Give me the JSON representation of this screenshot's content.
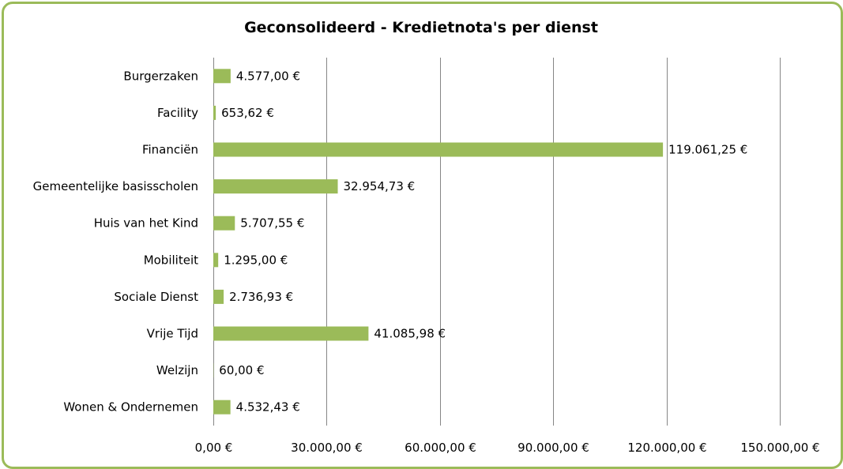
{
  "chart_data": {
    "type": "bar",
    "orientation": "horizontal",
    "title": "Geconsolideerd - Kredietnota's per dienst",
    "categories": [
      "Burgerzaken",
      "Facility",
      "Financiën",
      "Gemeentelijke basisscholen",
      "Huis van het Kind",
      "Mobiliteit",
      "Sociale Dienst",
      "Vrije Tijd",
      "Welzijn",
      "Wonen & Ondernemen"
    ],
    "values": [
      4577.0,
      653.62,
      119061.25,
      32954.73,
      5707.55,
      1295.0,
      2736.93,
      41085.98,
      60.0,
      4532.43
    ],
    "data_labels": [
      "4.577,00 €",
      "653,62 €",
      "119.061,25 €",
      "32.954,73 €",
      "5.707,55 €",
      "1.295,00 €",
      "2.736,93 €",
      "41.085,98 €",
      "60,00 €",
      "4.532,43 €"
    ],
    "xlim": [
      0,
      150000
    ],
    "xticks": [
      0,
      30000,
      60000,
      90000,
      120000,
      150000
    ],
    "xtick_labels": [
      "0,00 €",
      "30.000,00 €",
      "60.000,00 €",
      "90.000,00 €",
      "120.000,00 €",
      "150.000,00 €"
    ],
    "xlabel": "",
    "ylabel": "",
    "grid": true,
    "legend": "none",
    "bar_color": "#9bbb59",
    "border_color": "#9bbb59",
    "grid_color": "#868686"
  }
}
